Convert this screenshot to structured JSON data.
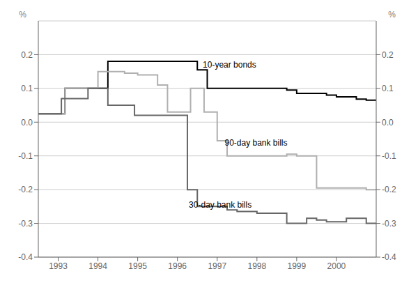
{
  "chart_data": {
    "type": "step",
    "xlim": [
      1992.5,
      2001.0
    ],
    "xticks": [
      1993,
      1994,
      1995,
      1996,
      1997,
      1998,
      1999,
      2000
    ],
    "ylim": [
      -0.4,
      0.3
    ],
    "yticks": [
      -0.4,
      -0.3,
      -0.2,
      -0.1,
      {
        "value": 0.0,
        "label": "0.0"
      },
      0.1,
      0.2
    ],
    "y2lim": [
      -0.4,
      0.3
    ],
    "y2ticks": [
      -0.4,
      -0.3,
      -0.2,
      -0.1,
      {
        "value": 0.0,
        "label": "0.0"
      },
      0.1,
      0.2
    ],
    "ylabel": "%",
    "y2label": "%",
    "grid": true,
    "series": [
      {
        "name": "10-year bonds",
        "color": "#000000",
        "label_x": 1996.55,
        "label_y": 0.17,
        "x": [
          1992.5,
          1992.92,
          1993.17,
          1993.5,
          1994.25,
          1996.25,
          1996.5,
          1996.75,
          1997.5,
          1998.0,
          1998.75,
          1999.0,
          1999.25,
          1999.5,
          1999.75,
          2000.0,
          2000.25,
          2000.5,
          2000.75,
          2001.0
        ],
        "values": [
          0.025,
          0.025,
          0.1,
          0.1,
          0.18,
          0.18,
          0.155,
          0.1,
          0.1,
          0.1,
          0.095,
          0.085,
          0.085,
          0.085,
          0.08,
          0.075,
          0.075,
          0.068,
          0.065,
          0.065
        ]
      },
      {
        "name": "90-day bank bills",
        "color": "#b0b0b0",
        "label_x": 1997.1,
        "label_y": -0.06,
        "x": [
          1992.5,
          1992.92,
          1993.17,
          1993.5,
          1994.0,
          1994.33,
          1994.67,
          1995.0,
          1995.5,
          1995.75,
          1996.0,
          1996.33,
          1996.5,
          1996.67,
          1996.75,
          1997.0,
          1997.25,
          1997.5,
          1998.5,
          1998.75,
          1999.0,
          1999.25,
          1999.5,
          1999.75,
          2000.0,
          2000.5,
          2000.75,
          2001.0
        ],
        "values": [
          0.025,
          0.025,
          0.1,
          0.1,
          0.15,
          0.15,
          0.145,
          0.14,
          0.11,
          0.03,
          0.03,
          0.1,
          0.1,
          0.03,
          0.03,
          -0.055,
          -0.1,
          -0.1,
          -0.1,
          -0.095,
          -0.1,
          -0.1,
          -0.195,
          -0.195,
          -0.195,
          -0.195,
          -0.2,
          -0.2
        ]
      },
      {
        "name": "30-day bank bills",
        "color": "#666666",
        "label_x": 1996.2,
        "label_y": -0.245,
        "x": [
          1992.5,
          1992.92,
          1993.08,
          1993.42,
          1993.75,
          1994.0,
          1994.25,
          1994.58,
          1994.92,
          1995.0,
          1995.25,
          1996.0,
          1996.25,
          1996.5,
          1997.0,
          1997.25,
          1997.5,
          1997.75,
          1998.0,
          1998.5,
          1998.75,
          1999.0,
          1999.25,
          1999.5,
          1999.75,
          2000.0,
          2000.25,
          2000.5,
          2000.75,
          2001.0
        ],
        "values": [
          0.025,
          0.025,
          0.07,
          0.07,
          0.1,
          0.1,
          0.05,
          0.05,
          0.02,
          0.02,
          0.02,
          0.02,
          -0.2,
          -0.25,
          -0.25,
          -0.26,
          -0.265,
          -0.265,
          -0.27,
          -0.27,
          -0.3,
          -0.3,
          -0.285,
          -0.29,
          -0.295,
          -0.295,
          -0.285,
          -0.285,
          -0.3,
          -0.3
        ]
      }
    ]
  }
}
